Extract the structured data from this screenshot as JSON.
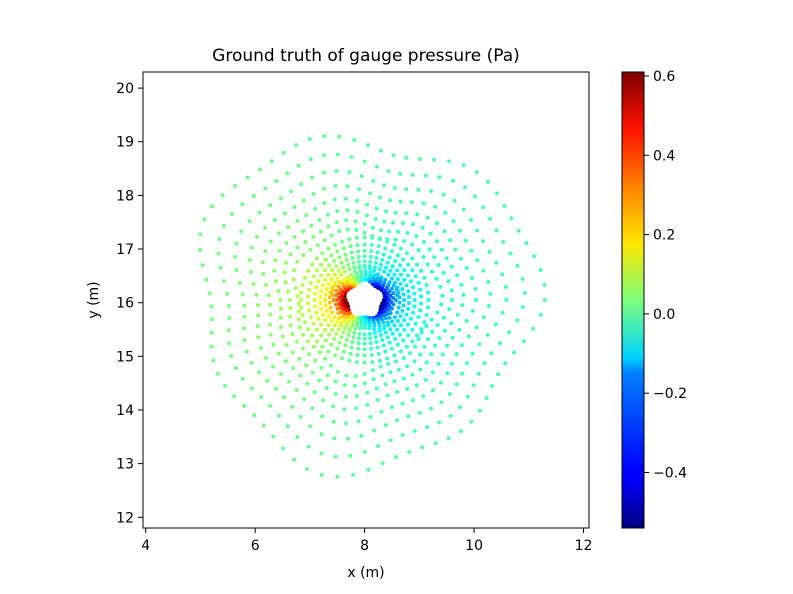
{
  "chart_data": {
    "type": "scatter",
    "title": "Ground truth of gauge pressure (Pa)",
    "xlabel": "x (m)",
    "ylabel": "y (m)",
    "xlim": [
      3.95,
      12.1
    ],
    "ylim": [
      11.8,
      20.3
    ],
    "xticks": [
      4,
      6,
      8,
      10,
      12
    ],
    "yticks": [
      12,
      13,
      14,
      15,
      16,
      17,
      18,
      19,
      20
    ],
    "colorbar": {
      "colormap": "jet",
      "vmin": -0.54,
      "vmax": 0.61,
      "ticks": [
        -0.4,
        -0.2,
        0.0,
        0.2,
        0.4,
        0.6
      ],
      "tick_labels": [
        "−0.4",
        "−0.2",
        "0.0",
        "0.2",
        "0.4",
        "0.6"
      ]
    },
    "point_cloud": {
      "description_of_field": "pressure sampled on concentric rings around a pentagonal obstacle",
      "center": [
        8.0,
        16.05
      ],
      "inner_radius": 0.35,
      "outer_radius": 3.05,
      "rings": 19,
      "angular_samples_base": 34,
      "pressure_formula": "p = -0.25*cos(theta) * (rin/r)^1.1 + 0.45*max(0,-cos(theta))^2*(rin/r)^2.2 - 0.3*max(0,cos(theta))*(rin/r)^3",
      "grid": false,
      "grid_in_plot": "off"
    }
  }
}
